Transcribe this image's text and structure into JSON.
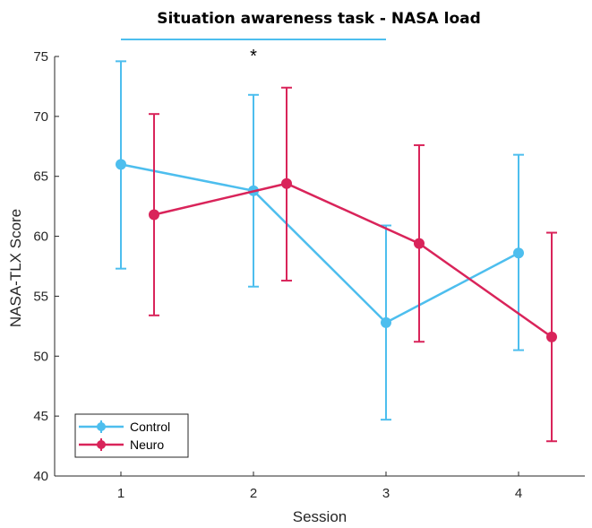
{
  "chart_data": {
    "type": "line",
    "title": "Situation awareness task - NASA load",
    "xlabel": "Session",
    "ylabel": "NASA-TLX Score",
    "xlim": [
      0.5,
      4.5
    ],
    "ylim": [
      40,
      75
    ],
    "xticks": [
      1,
      2,
      3,
      4
    ],
    "yticks": [
      40,
      45,
      50,
      55,
      60,
      65,
      70,
      75
    ],
    "grid": false,
    "legend_position": "bottom-left",
    "series": [
      {
        "name": "Control",
        "color": "#4DBEEE",
        "x": [
          1,
          2,
          3,
          4
        ],
        "values": [
          66.0,
          63.8,
          52.8,
          58.6
        ],
        "err_low": [
          57.3,
          55.8,
          44.7,
          50.5
        ],
        "err_high": [
          74.6,
          71.8,
          60.9,
          66.8
        ]
      },
      {
        "name": "Neuro",
        "color": "#D9245A",
        "x": [
          1.25,
          2.25,
          3.25,
          4.25
        ],
        "values": [
          61.8,
          64.4,
          59.4,
          51.6
        ],
        "err_low": [
          53.4,
          56.3,
          51.2,
          42.9
        ],
        "err_high": [
          70.2,
          72.4,
          67.6,
          60.3
        ]
      }
    ],
    "annotations": [
      {
        "type": "significance",
        "text": "*",
        "x_from": 1,
        "x_to": 3,
        "color": "#4DBEEE"
      }
    ]
  }
}
